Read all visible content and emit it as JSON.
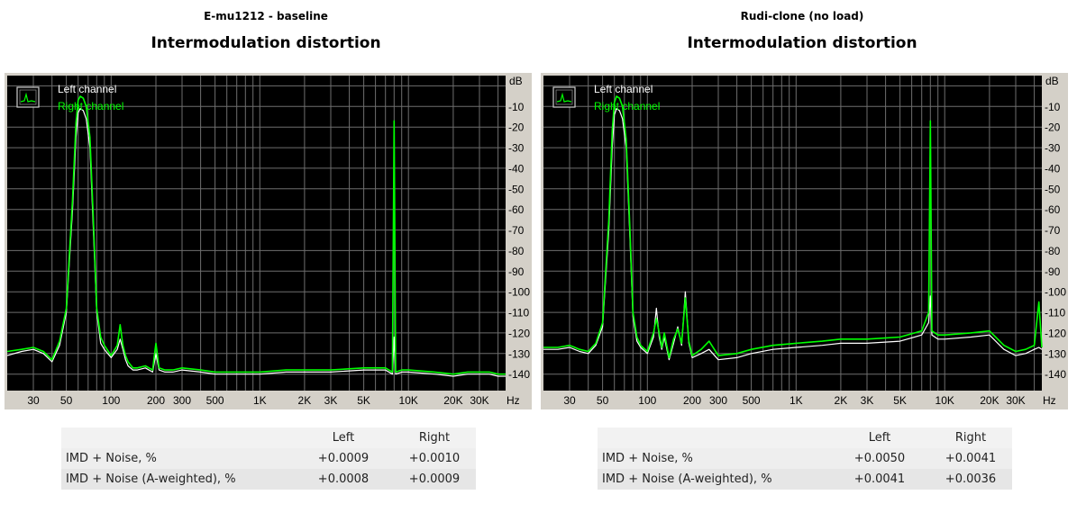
{
  "panels": [
    {
      "subtitle": "E-mu1212 - baseline",
      "title": "Intermodulation distortion",
      "results": {
        "headers": [
          "",
          "Left",
          "Right"
        ],
        "rows": [
          {
            "label": "IMD + Noise, %",
            "left": "+0.0009",
            "right": "+0.0010"
          },
          {
            "label": "IMD + Noise (A-weighted), %",
            "left": "+0.0008",
            "right": "+0.0009"
          }
        ]
      }
    },
    {
      "subtitle": "Rudi-clone (no load)",
      "title": "Intermodulation distortion",
      "results": {
        "headers": [
          "",
          "Left",
          "Right"
        ],
        "rows": [
          {
            "label": "IMD + Noise, %",
            "left": "+0.0050",
            "right": "+0.0041"
          },
          {
            "label": "IMD + Noise (A-weighted), %",
            "left": "+0.0041",
            "right": "+0.0036"
          }
        ]
      }
    }
  ],
  "chart_data": [
    {
      "type": "line",
      "xscale": "log",
      "xlim": [
        20,
        45000
      ],
      "ylim": [
        -148,
        5
      ],
      "ylabel": "dB",
      "xlabel": "Hz",
      "x_ticks": [
        30,
        50,
        100,
        200,
        300,
        500,
        1000,
        2000,
        3000,
        5000,
        10000,
        20000,
        30000
      ],
      "x_tick_labels": [
        "30",
        "50",
        "100",
        "200",
        "300",
        "500",
        "1K",
        "2K",
        "3K",
        "5K",
        "10K",
        "20K",
        "30K"
      ],
      "y_ticks": [
        -10,
        -20,
        -30,
        -40,
        -50,
        -60,
        -70,
        -80,
        -90,
        -100,
        -110,
        -120,
        -130,
        -140
      ],
      "y_tick_labels": [
        "-10",
        "-20",
        "-30",
        "-40",
        "-50",
        "-60",
        "-70",
        "-80",
        "-90",
        "-100",
        "-110",
        "-120",
        "-130",
        "-140"
      ],
      "grid": true,
      "legend": "top-left",
      "colors": {
        "left": "#ffffff",
        "right": "#00ff00",
        "background": "#000000",
        "grid": "#6e6e6e"
      },
      "series": [
        {
          "name": "Left channel",
          "color": "#ffffff",
          "x": [
            20,
            25,
            30,
            35,
            40,
            45,
            50,
            55,
            58,
            60,
            62,
            65,
            68,
            72,
            76,
            80,
            85,
            90,
            100,
            110,
            115,
            120,
            125,
            130,
            140,
            150,
            170,
            190,
            200,
            210,
            230,
            260,
            300,
            400,
            500,
            700,
            1000,
            1500,
            2000,
            3000,
            5000,
            7000,
            7800,
            8000,
            8200,
            9000,
            10000,
            15000,
            20000,
            25000,
            30000,
            35000,
            40000,
            45000
          ],
          "y": [
            -131,
            -129,
            -128,
            -130,
            -134,
            -126,
            -110,
            -60,
            -25,
            -13,
            -11,
            -12,
            -16,
            -30,
            -70,
            -110,
            -125,
            -128,
            -132,
            -128,
            -123,
            -128,
            -133,
            -136,
            -138,
            -138,
            -137,
            -139,
            -130,
            -138,
            -139,
            -139,
            -138,
            -139,
            -140,
            -140,
            -140,
            -139,
            -139,
            -139,
            -138,
            -138,
            -140,
            -122,
            -140,
            -139,
            -139,
            -140,
            -141,
            -140,
            -140,
            -140,
            -141,
            -141
          ]
        },
        {
          "name": "Right channel",
          "color": "#00ff00",
          "x": [
            20,
            25,
            30,
            35,
            40,
            45,
            50,
            55,
            58,
            60,
            62,
            65,
            68,
            72,
            76,
            80,
            85,
            90,
            100,
            110,
            115,
            120,
            125,
            130,
            140,
            150,
            170,
            190,
            200,
            210,
            230,
            260,
            300,
            400,
            500,
            700,
            1000,
            1500,
            2000,
            3000,
            5000,
            7000,
            7800,
            8000,
            8200,
            9000,
            10000,
            15000,
            20000,
            25000,
            30000,
            35000,
            40000,
            45000
          ],
          "y": [
            -129,
            -128,
            -127,
            -129,
            -133,
            -124,
            -108,
            -55,
            -18,
            -7,
            -5,
            -6,
            -10,
            -25,
            -65,
            -108,
            -122,
            -126,
            -131,
            -126,
            -116,
            -126,
            -131,
            -134,
            -137,
            -137,
            -136,
            -138,
            -125,
            -137,
            -138,
            -138,
            -137,
            -138,
            -139,
            -139,
            -139,
            -138,
            -138,
            -138,
            -137,
            -137,
            -139,
            -17,
            -139,
            -138,
            -138,
            -139,
            -140,
            -139,
            -139,
            -139,
            -140,
            -140
          ]
        }
      ]
    },
    {
      "type": "line",
      "xscale": "log",
      "xlim": [
        20,
        45000
      ],
      "ylim": [
        -148,
        5
      ],
      "ylabel": "dB",
      "xlabel": "Hz",
      "x_ticks": [
        30,
        50,
        100,
        200,
        300,
        500,
        1000,
        2000,
        3000,
        5000,
        10000,
        20000,
        30000
      ],
      "x_tick_labels": [
        "30",
        "50",
        "100",
        "200",
        "300",
        "500",
        "1K",
        "2K",
        "3K",
        "5K",
        "10K",
        "20K",
        "30K"
      ],
      "y_ticks": [
        -10,
        -20,
        -30,
        -40,
        -50,
        -60,
        -70,
        -80,
        -90,
        -100,
        -110,
        -120,
        -130,
        -140
      ],
      "y_tick_labels": [
        "-10",
        "-20",
        "-30",
        "-40",
        "-50",
        "-60",
        "-70",
        "-80",
        "-90",
        "-100",
        "-110",
        "-120",
        "-130",
        "-140"
      ],
      "grid": true,
      "legend": "top-left",
      "colors": {
        "left": "#ffffff",
        "right": "#00ff00",
        "background": "#000000",
        "grid": "#6e6e6e"
      },
      "series": [
        {
          "name": "Left channel",
          "color": "#ffffff",
          "x": [
            20,
            25,
            30,
            35,
            40,
            45,
            50,
            55,
            58,
            60,
            62,
            65,
            68,
            72,
            76,
            80,
            85,
            90,
            100,
            110,
            115,
            120,
            125,
            130,
            140,
            150,
            160,
            170,
            180,
            190,
            200,
            230,
            260,
            300,
            400,
            500,
            700,
            1000,
            1500,
            2000,
            3000,
            5000,
            7000,
            7800,
            8000,
            8200,
            9000,
            10000,
            15000,
            20000,
            25000,
            30000,
            35000,
            40000,
            43000,
            45000
          ],
          "y": [
            -128,
            -128,
            -127,
            -129,
            -130,
            -126,
            -117,
            -70,
            -30,
            -14,
            -11,
            -12,
            -16,
            -30,
            -70,
            -112,
            -124,
            -127,
            -130,
            -122,
            -108,
            -122,
            -128,
            -122,
            -133,
            -125,
            -117,
            -126,
            -100,
            -125,
            -132,
            -130,
            -128,
            -133,
            -132,
            -130,
            -128,
            -127,
            -126,
            -125,
            -125,
            -124,
            -121,
            -115,
            -102,
            -121,
            -123,
            -123,
            -122,
            -121,
            -128,
            -131,
            -130,
            -128,
            -127,
            -128
          ]
        },
        {
          "name": "Right channel",
          "color": "#00ff00",
          "x": [
            20,
            25,
            30,
            35,
            40,
            45,
            50,
            55,
            58,
            60,
            62,
            65,
            68,
            72,
            76,
            80,
            85,
            90,
            100,
            110,
            115,
            120,
            125,
            130,
            140,
            150,
            160,
            170,
            180,
            190,
            200,
            230,
            260,
            300,
            400,
            500,
            700,
            1000,
            1500,
            2000,
            3000,
            5000,
            7000,
            7800,
            8000,
            8200,
            9000,
            10000,
            15000,
            20000,
            25000,
            30000,
            35000,
            40000,
            43000,
            45000
          ],
          "y": [
            -127,
            -127,
            -126,
            -128,
            -129,
            -125,
            -115,
            -65,
            -22,
            -8,
            -5,
            -6,
            -10,
            -26,
            -66,
            -110,
            -122,
            -126,
            -129,
            -120,
            -113,
            -120,
            -127,
            -120,
            -132,
            -123,
            -118,
            -125,
            -103,
            -124,
            -131,
            -128,
            -124,
            -131,
            -130,
            -128,
            -126,
            -125,
            -124,
            -123,
            -123,
            -122,
            -119,
            -110,
            -17,
            -119,
            -121,
            -121,
            -120,
            -119,
            -126,
            -129,
            -128,
            -126,
            -105,
            -127
          ]
        }
      ]
    }
  ]
}
